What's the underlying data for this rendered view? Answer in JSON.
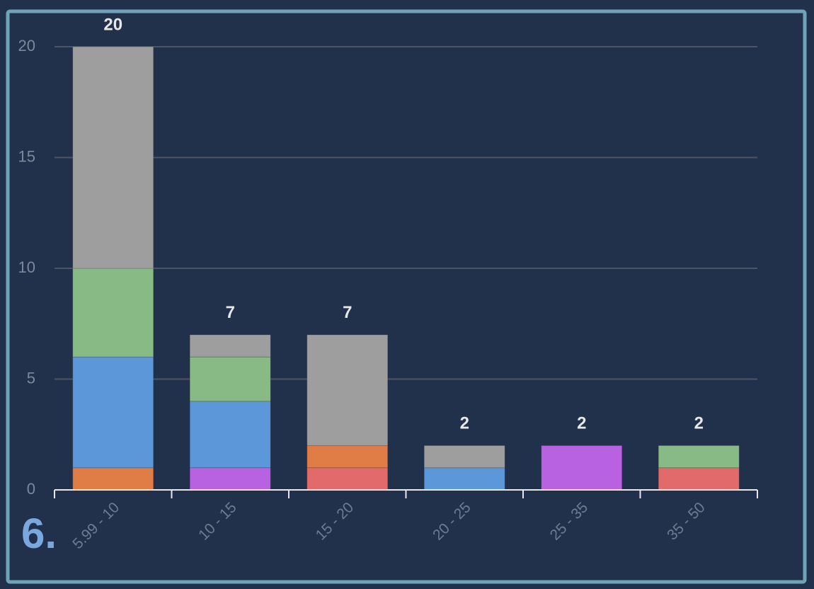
{
  "chart_data": {
    "type": "bar",
    "stacked": true,
    "categories": [
      "5.99 - 10",
      "10 - 15",
      "15 - 20",
      "20 - 25",
      "25 - 35",
      "35 - 50"
    ],
    "series": [
      {
        "color": "#e36a6a",
        "values": [
          0,
          0,
          1,
          0,
          0,
          1
        ]
      },
      {
        "color": "#e07c45",
        "values": [
          1,
          0,
          1,
          0,
          0,
          0
        ]
      },
      {
        "color": "#b862e2",
        "values": [
          0,
          1,
          0,
          0,
          2,
          0
        ]
      },
      {
        "color": "#5c97da",
        "values": [
          5,
          3,
          0,
          1,
          0,
          0
        ]
      },
      {
        "color": "#87ba85",
        "values": [
          4,
          2,
          0,
          0,
          0,
          1
        ]
      },
      {
        "color": "#9e9e9e",
        "values": [
          10,
          1,
          5,
          1,
          0,
          0
        ]
      }
    ],
    "totals": [
      20,
      7,
      7,
      2,
      2,
      2
    ],
    "ylim": [
      0,
      20
    ],
    "yticks": [
      0,
      5,
      10,
      15,
      20
    ],
    "grid": true,
    "annotation": "6."
  }
}
